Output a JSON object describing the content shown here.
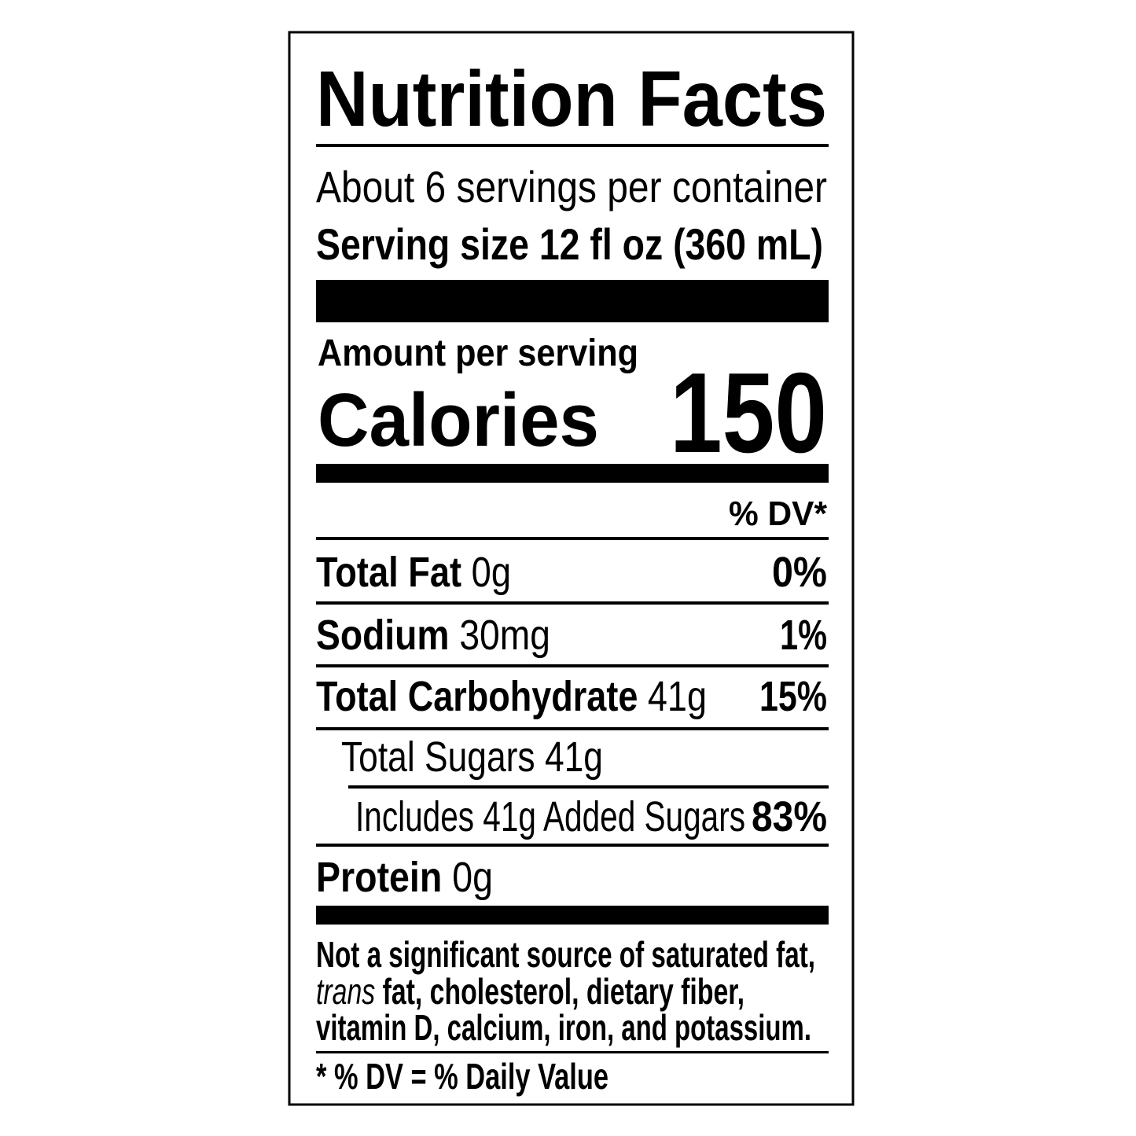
{
  "title": "Nutrition Facts",
  "servings": "About 6 servings per container",
  "serving_size": {
    "label": "Serving size",
    "value": "12 fl oz (360 mL)"
  },
  "amount_per_serving": "Amount per serving",
  "calories": {
    "label": "Calories",
    "value": "150"
  },
  "dv_header": "% DV*",
  "nutrients": [
    {
      "name": "Total Fat",
      "amount": "0g",
      "dv": "0%"
    },
    {
      "name": "Sodium",
      "amount": "30mg",
      "dv": "1%"
    },
    {
      "name": "Total Carbohydrate",
      "amount": "41g",
      "dv": "15%"
    },
    {
      "name": "Total Sugars",
      "amount": "41g"
    },
    {
      "name": "Includes 41g Added Sugars",
      "dv": "83%"
    },
    {
      "name": "Protein",
      "amount": "0g"
    }
  ],
  "footnote": {
    "line1": "Not a significant source of saturated fat,",
    "italic": "trans",
    "line2": "fat, cholesterol, dietary fiber,",
    "line3": "vitamin D, calcium, iron, and potassium."
  },
  "dv_note": "* % DV = % Daily Value"
}
